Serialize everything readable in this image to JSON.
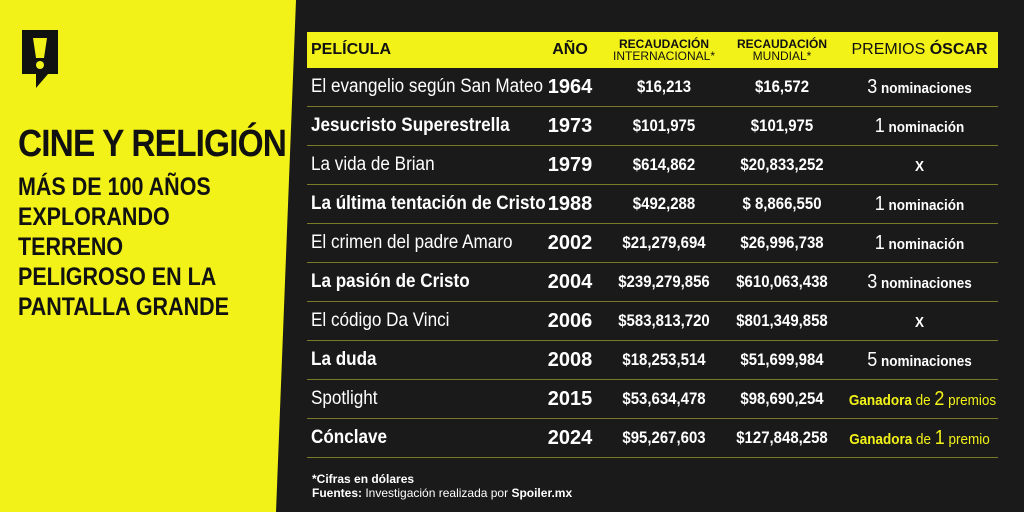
{
  "brand": {
    "logo_icon": "spoiler-exclamation-logo",
    "accent_color": "#f2f219",
    "background_color": "#1a1a1a"
  },
  "title": "CINE Y RELIGIÓN",
  "subtitle": "MÁS DE 100 AÑOS\nEXPLORANDO TERRENO\nPELIGROSO EN LA\nPANTALLA GRANDE",
  "table": {
    "headers": {
      "film": "PELÍCULA",
      "year": "AÑO",
      "intl_top": "RECAUDACIÓN",
      "intl_sub": "INTERNACIONAL*",
      "world_top": "RECAUDACIÓN",
      "world_sub": "MUNDIAL*",
      "oscar_a": "PREMIOS ",
      "oscar_b": "ÓSCAR"
    },
    "rows": [
      {
        "film": "El evangelio según San Mateo",
        "year": "1964",
        "intl": "$16,213",
        "world": "$16,572",
        "award_num": "3",
        "award_text": " nominaciones"
      },
      {
        "film": "Jesucristo Superestrella",
        "year": "1973",
        "intl": "$101,975",
        "world": "$101,975",
        "award_num": "1",
        "award_text": " nominación"
      },
      {
        "film": "La vida de Brian",
        "year": "1979",
        "intl": "$614,862",
        "world": "$20,833,252",
        "award_num": "",
        "award_text": "X"
      },
      {
        "film": "La última tentación de Cristo",
        "year": "1988",
        "intl": "$492,288",
        "world": "$ 8,866,550",
        "award_num": "1",
        "award_text": " nominación"
      },
      {
        "film": "El crimen del padre Amaro",
        "year": "2002",
        "intl": "$21,279,694",
        "world": "$26,996,738",
        "award_num": "1",
        "award_text": " nominación"
      },
      {
        "film": "La pasión de Cristo",
        "year": "2004",
        "intl": "$239,279,856",
        "world": "$610,063,438",
        "award_num": "3",
        "award_text": " nominaciones"
      },
      {
        "film": "El código Da Vinci",
        "year": "2006",
        "intl": "$583,813,720",
        "world": "$801,349,858",
        "award_num": "",
        "award_text": "X"
      },
      {
        "film": "La duda",
        "year": "2008",
        "intl": "$18,253,514",
        "world": "$51,699,984",
        "award_num": "5",
        "award_text": " nominaciones"
      },
      {
        "film": "Spotlight",
        "year": "2015",
        "intl": "$53,634,478",
        "world": "$98,690,254",
        "award_win": "Ganadora",
        "award_de": " de ",
        "award_num": "2",
        "award_text": " premios"
      },
      {
        "film": "Cónclave",
        "year": "2024",
        "intl": "$95,267,603",
        "world": "$127,848,258",
        "award_win": "Ganadora",
        "award_de": " de ",
        "award_num": "1",
        "award_text": " premio"
      }
    ]
  },
  "footnote": {
    "line1": "*Cifras en dólares",
    "sources_label": "Fuentes:",
    "sources_text": " Investigación realizada por ",
    "sources_site": "Spoiler.mx"
  }
}
